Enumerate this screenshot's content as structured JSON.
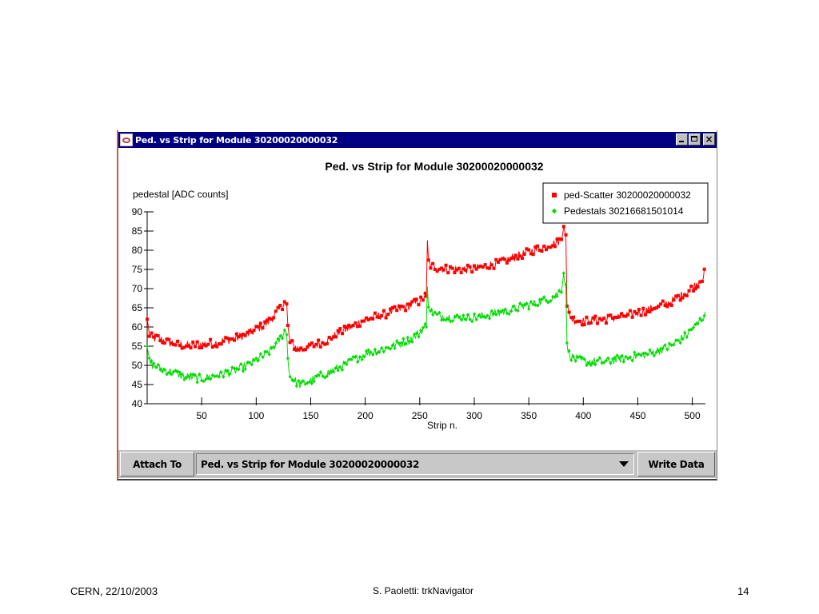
{
  "window": {
    "title": "Ped. vs Strip for Module 30200020000032"
  },
  "toolbar": {
    "attach_label": "Attach To",
    "selected_plot": "Ped. vs Strip for Module 30200020000032",
    "write_label": "Write Data"
  },
  "footer": {
    "left": "CERN, 22/10/2003",
    "center": "S. Paoletti: trkNavigator",
    "page": "14"
  },
  "colors": {
    "title_bar": "#000080",
    "series_red": "#ff0000",
    "series_green": "#00dd00"
  },
  "chart_data": {
    "type": "scatter",
    "title": "Ped. vs Strip for Module 30200020000032",
    "xlabel": "Strip n.",
    "ylabel": "pedestal [ADC counts]",
    "xlim": [
      0,
      512
    ],
    "ylim": [
      40,
      90
    ],
    "xticks": [
      50,
      100,
      150,
      200,
      250,
      300,
      350,
      400,
      450,
      500
    ],
    "yticks": [
      40,
      45,
      50,
      55,
      60,
      65,
      70,
      75,
      80,
      85,
      90
    ],
    "legend_position": "top-right",
    "grid": false,
    "series": [
      {
        "name": "ped-Scatter 30200020000032",
        "marker": "square",
        "color": "#ff0000",
        "segments": [
          {
            "x": [
              0,
              2,
              5,
              10,
              20,
              35,
              50,
              65,
              80,
              95,
              110,
              120,
              126,
              128
            ],
            "y": [
              62,
              58,
              57,
              57,
              56,
              55,
              55.5,
              56,
              57,
              58.5,
              61,
              64,
              66.5,
              66
            ]
          },
          {
            "x": [
              128,
              129,
              131,
              135,
              140,
              150,
              165,
              180,
              200,
              220,
              240,
              252,
              254,
              256
            ],
            "y": [
              66,
              60,
              56,
              55,
              54,
              55,
              56.5,
              59,
              62,
              63.5,
              65.5,
              67,
              68,
              68
            ]
          },
          {
            "x": [
              256,
              257,
              258,
              260,
              265,
              280,
              300,
              320,
              340,
              360,
              370,
              376,
              380,
              382,
              384
            ],
            "y": [
              68,
              82,
              77,
              76,
              75.5,
              75,
              75,
              76.5,
              78.5,
              80.5,
              81.5,
              82,
              83,
              87,
              84
            ]
          },
          {
            "x": [
              384,
              385,
              387,
              390,
              400,
              420,
              440,
              460,
              480,
              495,
              505,
              510,
              512
            ],
            "y": [
              84,
              65,
              63.5,
              62,
              61.5,
              62,
              63,
              64.5,
              66.5,
              69,
              71.5,
              73,
              75
            ]
          }
        ]
      },
      {
        "name": "Pedestals 30216681501014",
        "marker": "diamond",
        "color": "#00dd00",
        "segments": [
          {
            "x": [
              0,
              2,
              5,
              10,
              20,
              35,
              50,
              65,
              80,
              95,
              110,
              120,
              126,
              128
            ],
            "y": [
              55,
              51,
              50,
              49.5,
              48.5,
              47,
              46.5,
              47.5,
              48.5,
              50.5,
              53,
              56,
              59,
              58
            ]
          },
          {
            "x": [
              128,
              129,
              131,
              135,
              140,
              150,
              165,
              180,
              200,
              220,
              240,
              250,
              254,
              256
            ],
            "y": [
              58,
              52,
              47,
              46,
              45,
              46,
              48,
              50,
              53,
              54.5,
              56.5,
              58.5,
              60,
              60
            ]
          },
          {
            "x": [
              256,
              257,
              258,
              260,
              265,
              280,
              300,
              320,
              340,
              360,
              370,
              376,
              380,
              382,
              384
            ],
            "y": [
              60,
              70,
              66,
              64.5,
              63,
              62.5,
              62.5,
              63.5,
              65,
              66.5,
              67.5,
              68.5,
              70,
              74,
              71
            ]
          },
          {
            "x": [
              384,
              385,
              387,
              390,
              400,
              420,
              440,
              460,
              480,
              495,
              505,
              510,
              512
            ],
            "y": [
              71,
              55,
              53,
              52,
              51,
              51,
              52,
              53,
              55,
              58,
              61,
              62.5,
              64
            ]
          }
        ]
      }
    ]
  }
}
